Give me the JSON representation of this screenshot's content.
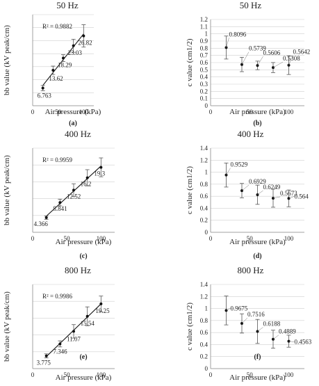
{
  "colors": {
    "line": "#111111",
    "grid": "#cfcfcf",
    "axis": "#8a8a8a",
    "errorbar": "#555555",
    "leader": "#777777"
  },
  "chart_data": [
    {
      "type": "scatter",
      "panel_label": "(a)",
      "title": "50 Hz",
      "xlabel": "Air pressure (kPa)",
      "ylabel": "bb value (kV peak/cm)",
      "xlim": [
        0,
        120
      ],
      "ylim": [
        0,
        35
      ],
      "x_ticks": [
        0,
        50,
        100
      ],
      "y_ticks": [
        0,
        5,
        10,
        15,
        20,
        25,
        30,
        35
      ],
      "ytick_labels": false,
      "grid": true,
      "x": [
        20,
        40,
        60,
        80,
        100
      ],
      "y": [
        6.763,
        13.62,
        18.29,
        23.03,
        26.82
      ],
      "y_err": [
        1,
        1.6,
        1.3,
        2.5,
        4.3
      ],
      "data_labels": [
        "6.763",
        "13.62",
        "18.29",
        "23.03",
        "26.82"
      ],
      "trendline": "linear",
      "r2_label": "R² = 0.9882"
    },
    {
      "type": "scatter",
      "panel_label": "(b)",
      "title": "50 Hz",
      "xlabel": "Air pressure (kPa)",
      "ylabel": "c value (cm1/2)",
      "xlim": [
        0,
        120
      ],
      "ylim": [
        0,
        1.2
      ],
      "x_ticks": [
        0,
        50,
        100
      ],
      "y_ticks": [
        0,
        0.1,
        0.2,
        0.3,
        0.4,
        0.5,
        0.6,
        0.7,
        0.8,
        0.9,
        1,
        1.1,
        1.2
      ],
      "ytick_labels": [
        "0",
        "0.1",
        "0.2",
        "0.3",
        "0.4",
        "0.5",
        "0.6",
        "0.7",
        "0.8",
        "0.9",
        "1",
        "1.1",
        "1.2"
      ],
      "grid": true,
      "x": [
        20,
        40,
        60,
        80,
        100
      ],
      "y": [
        0.8096,
        0.5739,
        0.5606,
        0.5308,
        0.5642
      ],
      "y_err": [
        0.16,
        0.1,
        0.06,
        0.07,
        0.13
      ],
      "data_labels": [
        "0.8096",
        "0.5739",
        "0.5606",
        "0.5308",
        "0.5642"
      ]
    },
    {
      "type": "scatter",
      "panel_label": "(c)",
      "title": "400 Hz",
      "xlabel": "Air pressure (kPa)",
      "ylabel": "bb value (kV peak/cm)",
      "xlim": [
        0,
        120
      ],
      "ylim": [
        0,
        25
      ],
      "x_ticks": [
        0,
        50,
        100
      ],
      "y_ticks": [
        0,
        5,
        10,
        15,
        20,
        25
      ],
      "ytick_labels": false,
      "grid": true,
      "x": [
        20,
        40,
        60,
        80,
        100
      ],
      "y": [
        4.366,
        8.841,
        12.52,
        16.2,
        19.3
      ],
      "y_err": [
        0.5,
        1,
        1.9,
        2.4,
        2.8
      ],
      "data_labels": [
        "4.366",
        "8.841",
        "12.52",
        "16.2",
        "19.3"
      ],
      "trendline": "linear",
      "r2_label": "R² = 0.9959"
    },
    {
      "type": "scatter",
      "panel_label": "(d)",
      "title": "400 Hz",
      "xlabel": "Air pressure (kPa)",
      "ylabel": "c value (cm1/2)",
      "xlim": [
        0,
        120
      ],
      "ylim": [
        0,
        1.4
      ],
      "x_ticks": [
        0,
        50,
        100
      ],
      "y_ticks": [
        0,
        0.2,
        0.4,
        0.6,
        0.8,
        1,
        1.2,
        1.4
      ],
      "ytick_labels": [
        "0",
        "0.2",
        "0.4",
        "0.6",
        "0.8",
        "1",
        "1.2",
        "1.4"
      ],
      "grid": true,
      "x": [
        20,
        40,
        60,
        80,
        100
      ],
      "y": [
        0.9529,
        0.6929,
        0.6249,
        0.5673,
        0.564
      ],
      "y_err": [
        0.2,
        0.12,
        0.16,
        0.15,
        0.14
      ],
      "data_labels": [
        "0.9529",
        "0.6929",
        "0.6249",
        "0.5673",
        "0.564"
      ]
    },
    {
      "type": "scatter",
      "panel_label": "(e)",
      "title": "800 Hz",
      "xlabel": "Air pressure (kPa)",
      "ylabel": "bb value (kV peak/cm)",
      "xlim": [
        0,
        120
      ],
      "ylim": [
        0,
        25
      ],
      "x_ticks": [
        0,
        50,
        100
      ],
      "y_ticks": [
        0,
        5,
        10,
        15,
        20,
        25
      ],
      "ytick_labels": false,
      "grid": true,
      "x": [
        20,
        40,
        60,
        80,
        100
      ],
      "y": [
        3.775,
        7.346,
        11.07,
        15.54,
        19.25
      ],
      "y_err": [
        0.6,
        0.9,
        2,
        2.8,
        2.3
      ],
      "data_labels": [
        "3.775",
        "7.346",
        "11.07",
        "15.54",
        "19.25"
      ],
      "trendline": "linear",
      "r2_label": "R² = 0.9986"
    },
    {
      "type": "scatter",
      "panel_label": "(f)",
      "title": "800 Hz",
      "xlabel": "Air pressure (kPa)",
      "ylabel": "c value (cm1/2)",
      "xlim": [
        0,
        120
      ],
      "ylim": [
        0,
        1.4
      ],
      "x_ticks": [
        0,
        50,
        100
      ],
      "y_ticks": [
        0,
        0.2,
        0.4,
        0.6,
        0.8,
        1,
        1.2,
        1.4
      ],
      "ytick_labels": [
        "0",
        "0.2",
        "0.4",
        "0.6",
        "0.8",
        "1",
        "1.2",
        "1.4"
      ],
      "grid": true,
      "x": [
        20,
        40,
        60,
        80,
        100
      ],
      "y": [
        0.9675,
        0.7516,
        0.6188,
        0.4889,
        0.4563
      ],
      "y_err": [
        0.24,
        0.16,
        0.2,
        0.15,
        0.1
      ],
      "data_labels": [
        "0.9675",
        "0.7516",
        "0.6188",
        "0.4889",
        "0.4563"
      ]
    }
  ]
}
